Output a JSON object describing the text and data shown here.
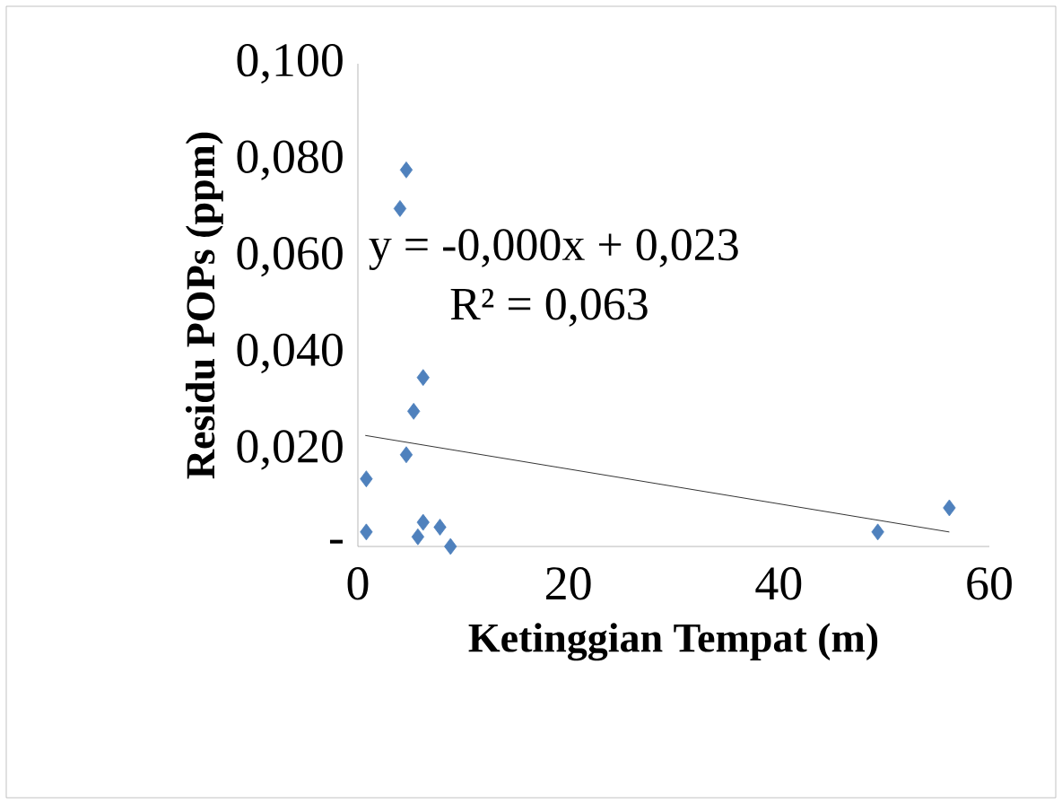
{
  "chart_data": {
    "type": "scatter",
    "xlabel": "Ketinggian Tempat (m)",
    "ylabel": "Residu POPs (ppm)",
    "marker": "diamond",
    "grid": false,
    "xlim": [
      0,
      60
    ],
    "xticks": [
      0,
      20,
      40,
      60
    ],
    "ylim": [
      0,
      0.1
    ],
    "yticks": [
      {
        "value": 0,
        "label": "-"
      },
      {
        "value": 0.02,
        "label": "0,020"
      },
      {
        "value": 0.04,
        "label": "0,040"
      },
      {
        "value": 0.06,
        "label": "0,060"
      },
      {
        "value": 0.08,
        "label": "0,080"
      },
      {
        "value": 0.1,
        "label": "0,100"
      }
    ],
    "series": [
      {
        "color": "#4f81bd",
        "x": [
          4.6,
          4.0,
          6.2,
          5.3,
          4.6,
          0.8,
          0.8,
          5.7,
          6.2,
          7.8,
          8.8,
          49.4,
          56.2
        ],
        "values": [
          0.078,
          0.07,
          0.035,
          0.028,
          0.019,
          0.014,
          0.003,
          0.002,
          0.005,
          0.004,
          0.0,
          0.003,
          0.008
        ]
      },
      {
        "type": "line",
        "color": "#000000",
        "marker": "none",
        "x": [
          0.7,
          56.2
        ],
        "values": [
          0.023,
          0.003
        ]
      }
    ],
    "annotations": [
      "y = -0,000x + 0,023",
      "R² = 0,063"
    ]
  }
}
